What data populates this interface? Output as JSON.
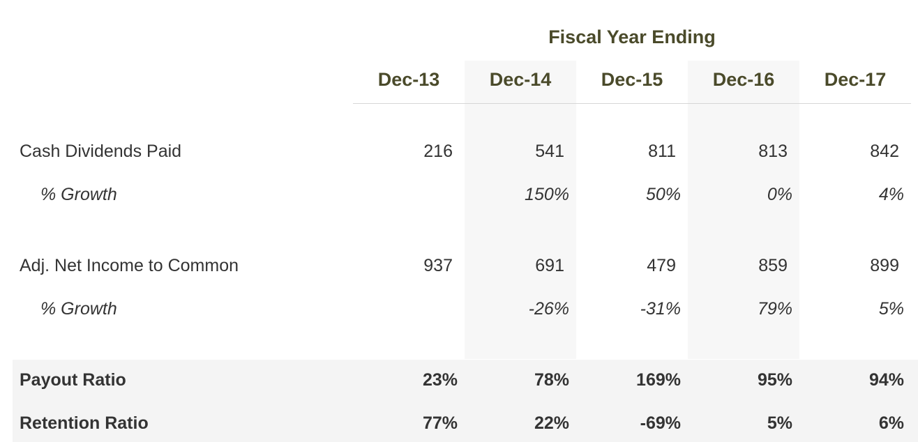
{
  "chart_data": {
    "type": "table",
    "title": "Fiscal Year Ending",
    "columns": [
      "Dec-13",
      "Dec-14",
      "Dec-15",
      "Dec-16",
      "Dec-17"
    ],
    "rows": [
      {
        "label": "Cash Dividends Paid",
        "values": [
          "216",
          "541",
          "811",
          "813",
          "842"
        ],
        "style": "normal"
      },
      {
        "label": "% Growth",
        "values": [
          "",
          "150%",
          "50%",
          "0%",
          "4%"
        ],
        "style": "sub"
      },
      {
        "label": "Adj. Net Income to Common",
        "values": [
          "937",
          "691",
          "479",
          "859",
          "899"
        ],
        "style": "normal"
      },
      {
        "label": "% Growth",
        "values": [
          "",
          "-26%",
          "-31%",
          "79%",
          "5%"
        ],
        "style": "sub"
      },
      {
        "label": "Payout Ratio",
        "values": [
          "23%",
          "78%",
          "169%",
          "95%",
          "94%"
        ],
        "style": "bold"
      },
      {
        "label": "Retention Ratio",
        "values": [
          "77%",
          "22%",
          "-69%",
          "5%",
          "6%"
        ],
        "style": "bold"
      }
    ],
    "colors": {
      "header": "#4a4a2a",
      "text": "#333333",
      "stripe": "#f7f7f7",
      "summary_band": "#f4f4f4"
    }
  }
}
